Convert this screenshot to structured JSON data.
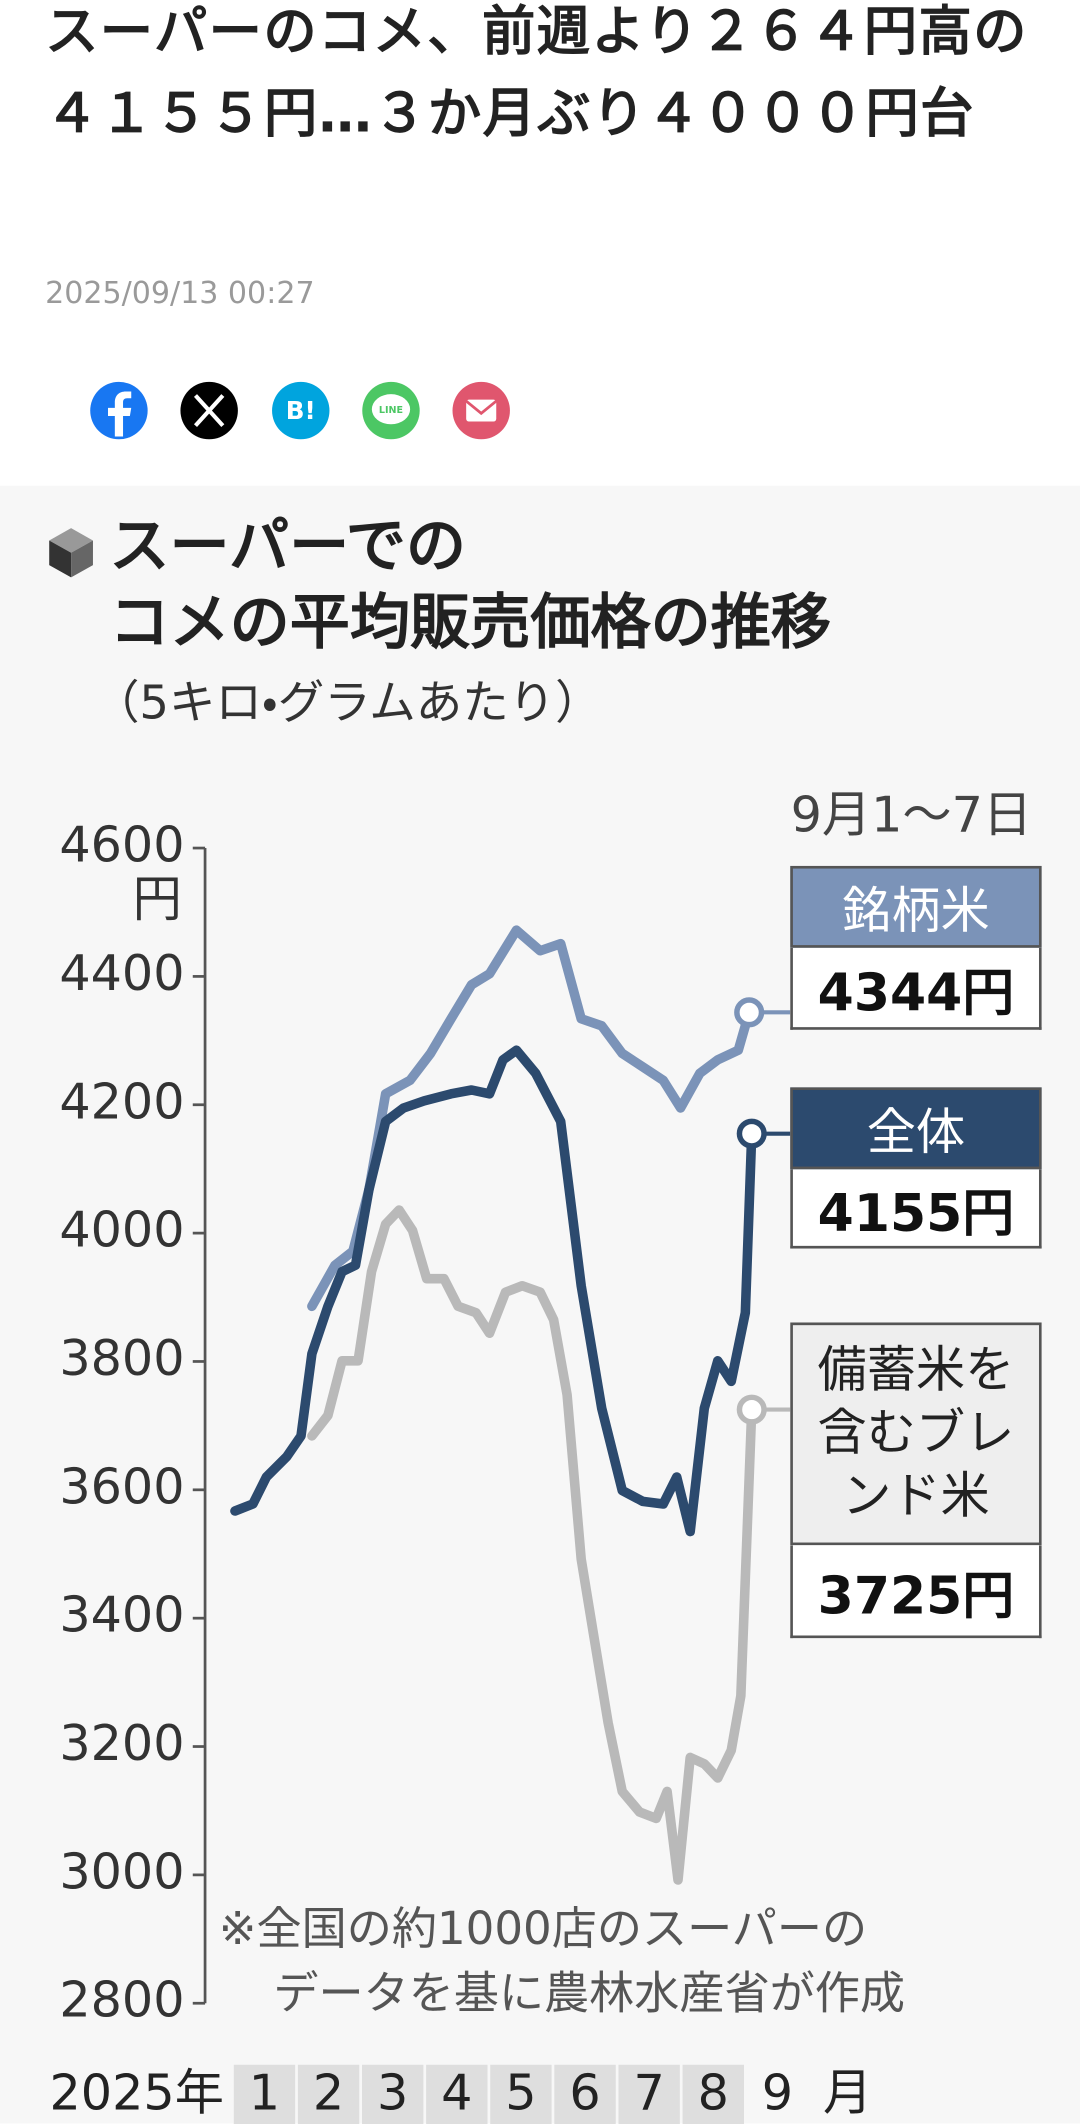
{
  "article": {
    "title": "スーパーのコメ、前週より２６４円高の４１５５円…３か月ぶり４０００円台",
    "date": "2025/09/13 00:27",
    "share": {
      "hatena": "B!",
      "line": "LINE"
    }
  },
  "chart_data": {
    "type": "line",
    "title": [
      "スーパーでの",
      "コメの平均販売価格の推移"
    ],
    "subtitle": "（5キロ・グラムあたり）",
    "period_label": "9月1〜7日",
    "y_unit": "円",
    "x_prefix": "2025年",
    "x_suffix": "月",
    "note": [
      "※全国の約1000店のスーパーの",
      "データを基に農林水産省が作成"
    ],
    "xlim": [
      0,
      9
    ],
    "xticks": [
      {
        "value": 0.5,
        "label": "1"
      },
      {
        "value": 1.5,
        "label": "2"
      },
      {
        "value": 2.5,
        "label": "3"
      },
      {
        "value": 3.5,
        "label": "4"
      },
      {
        "value": 4.5,
        "label": "5"
      },
      {
        "value": 5.5,
        "label": "6"
      },
      {
        "value": 6.5,
        "label": "7"
      },
      {
        "value": 7.5,
        "label": "8"
      },
      {
        "value": 8.5,
        "label": "9"
      }
    ],
    "ylim": [
      2800,
      4600
    ],
    "yticks": [
      2800,
      3000,
      3200,
      3400,
      3600,
      3800,
      4000,
      4200,
      4400,
      4600
    ],
    "series": [
      {
        "name": "銘柄米",
        "color": "#7b93b8",
        "x": [
          1.24,
          1.6,
          1.88,
          2.13,
          2.39,
          2.77,
          3.09,
          3.41,
          3.73,
          4.01,
          4.43,
          4.8,
          5.12,
          5.44,
          5.76,
          6.08,
          6.4,
          6.72,
          6.99,
          7.29,
          7.57,
          7.89,
          8.06
        ],
        "values": [
          3886,
          3950,
          3972,
          4068,
          4217,
          4238,
          4280,
          4334,
          4387,
          4404,
          4472,
          4440,
          4451,
          4334,
          4323,
          4280,
          4259,
          4238,
          4195,
          4249,
          4270,
          4285,
          4344
        ],
        "value_labels": [
          null,
          null,
          null,
          null,
          null,
          null,
          null,
          null,
          null,
          null,
          null,
          null,
          null,
          null,
          null,
          null,
          null,
          null,
          null,
          null,
          null,
          null,
          "4344円"
        ]
      },
      {
        "name": "全体",
        "color": "#2c4a6e",
        "x": [
          0.04,
          0.32,
          0.53,
          0.85,
          1.07,
          1.24,
          1.49,
          1.71,
          1.92,
          2.13,
          2.39,
          2.67,
          2.99,
          3.41,
          3.73,
          4.01,
          4.22,
          4.43,
          4.73,
          5.12,
          5.44,
          5.76,
          6.08,
          6.4,
          6.72,
          6.93,
          7.14,
          7.36,
          7.57,
          7.78,
          8.0,
          8.1
        ],
        "values": [
          3567,
          3578,
          3620,
          3652,
          3684,
          3812,
          3886,
          3940,
          3950,
          4068,
          4174,
          4195,
          4206,
          4217,
          4223,
          4217,
          4270,
          4285,
          4249,
          4174,
          3918,
          3727,
          3599,
          3582,
          3578,
          3620,
          3535,
          3727,
          3801,
          3769,
          3876,
          4155
        ],
        "value_labels": [
          null,
          null,
          null,
          null,
          null,
          null,
          null,
          null,
          null,
          null,
          null,
          null,
          null,
          null,
          null,
          null,
          null,
          null,
          null,
          null,
          null,
          null,
          null,
          null,
          null,
          null,
          null,
          null,
          null,
          null,
          null,
          "4155円"
        ]
      },
      {
        "name": "備蓄米を含むブレンド米",
        "color": "#b9b9b9",
        "x": [
          1.24,
          1.49,
          1.71,
          1.96,
          2.17,
          2.39,
          2.6,
          2.81,
          3.03,
          3.3,
          3.52,
          3.8,
          4.01,
          4.26,
          4.52,
          4.8,
          5.01,
          5.22,
          5.44,
          5.65,
          5.86,
          6.08,
          6.35,
          6.61,
          6.78,
          6.95,
          7.14,
          7.36,
          7.57,
          7.78,
          7.93,
          8.1
        ],
        "values": [
          3684,
          3716,
          3801,
          3801,
          3940,
          4014,
          4036,
          4004,
          3929,
          3929,
          3886,
          3876,
          3844,
          3908,
          3918,
          3908,
          3865,
          3748,
          3492,
          3364,
          3237,
          3130,
          3098,
          3088,
          3130,
          2992,
          3183,
          3173,
          3151,
          3194,
          3279,
          3725
        ],
        "value_labels": [
          null,
          null,
          null,
          null,
          null,
          null,
          null,
          null,
          null,
          null,
          null,
          null,
          null,
          null,
          null,
          null,
          null,
          null,
          null,
          null,
          null,
          null,
          null,
          null,
          null,
          null,
          null,
          null,
          null,
          null,
          null,
          "3725円"
        ]
      }
    ]
  }
}
